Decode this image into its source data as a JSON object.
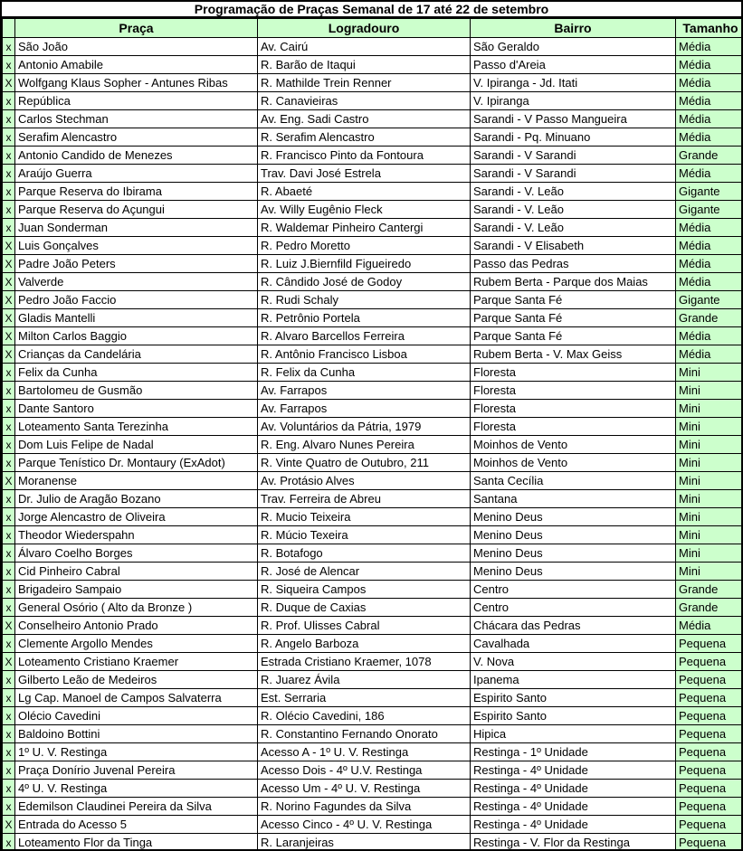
{
  "title": "Programação de Praças Semanal de 17 até 22 de setembro",
  "colors": {
    "highlight_green": "#ccffcc",
    "border": "#000000",
    "text": "#000000",
    "row_bg": "#ffffff"
  },
  "table": {
    "columns": {
      "mark": "",
      "praca": "Praça",
      "logradouro": "Logradouro",
      "bairro": "Bairro",
      "tamanho": "Tamanho"
    },
    "rows": [
      {
        "mark": "x",
        "praca": "São João",
        "logradouro": "Av. Cairú",
        "bairro": "São Geraldo",
        "tamanho": "Média"
      },
      {
        "mark": "x",
        "praca": "Antonio Amabile",
        "logradouro": "R. Barão de Itaqui",
        "bairro": "Passo d'Areia",
        "tamanho": "Média"
      },
      {
        "mark": "X",
        "praca": "Wolfgang Klaus Sopher - Antunes Ribas",
        "logradouro": "R. Mathilde Trein Renner",
        "bairro": "V. Ipiranga - Jd. Itati",
        "tamanho": "Média"
      },
      {
        "mark": "x",
        "praca": "República",
        "logradouro": "R. Canavieiras",
        "bairro": "V. Ipiranga",
        "tamanho": "Média"
      },
      {
        "mark": "x",
        "praca": "Carlos Stechman",
        "logradouro": "Av. Eng. Sadi Castro",
        "bairro": "Sarandi - V Passo Mangueira",
        "tamanho": "Média"
      },
      {
        "mark": "x",
        "praca": "Serafim Alencastro",
        "logradouro": "R. Serafim Alencastro",
        "bairro": "Sarandi - Pq. Minuano",
        "tamanho": "Média"
      },
      {
        "mark": "x",
        "praca": "Antonio Candido de Menezes",
        "logradouro": "R. Francisco Pinto da Fontoura",
        "bairro": "Sarandi - V Sarandi",
        "tamanho": "Grande"
      },
      {
        "mark": "x",
        "praca": "Araújo Guerra",
        "logradouro": "Trav. Davi José Estrela",
        "bairro": "Sarandi - V Sarandi",
        "tamanho": "Média"
      },
      {
        "mark": "x",
        "praca": "Parque Reserva do Ibirama",
        "logradouro": "R. Abaeté",
        "bairro": "Sarandi - V. Leão",
        "tamanho": "Gigante"
      },
      {
        "mark": "x",
        "praca": "Parque Reserva do Açungui",
        "logradouro": "Av. Willy Eugênio Fleck",
        "bairro": "Sarandi - V. Leão",
        "tamanho": "Gigante"
      },
      {
        "mark": "x",
        "praca": "Juan Sonderman",
        "logradouro": "R. Waldemar Pinheiro Cantergi",
        "bairro": "Sarandi - V. Leão",
        "tamanho": "Média"
      },
      {
        "mark": "X",
        "praca": "Luis Gonçalves",
        "logradouro": "R. Pedro Moretto",
        "bairro": "Sarandi - V Elisabeth",
        "tamanho": "Média"
      },
      {
        "mark": "X",
        "praca": "Padre João Peters",
        "logradouro": "R. Luiz J.Biernfild Figueiredo",
        "bairro": "Passo das Pedras",
        "tamanho": "Média"
      },
      {
        "mark": "X",
        "praca": "Valverde",
        "logradouro": "R. Cândido José de Godoy",
        "bairro": "Rubem Berta - Parque dos Maias",
        "tamanho": "Média"
      },
      {
        "mark": "X",
        "praca": "Pedro João Faccio",
        "logradouro": "R. Rudi Schaly",
        "bairro": "Parque Santa Fé",
        "tamanho": "Gigante"
      },
      {
        "mark": "X",
        "praca": "Gladis Mantelli",
        "logradouro": "R. Petrônio Portela",
        "bairro": "Parque Santa Fé",
        "tamanho": "Grande"
      },
      {
        "mark": "X",
        "praca": "Milton Carlos Baggio",
        "logradouro": "R. Alvaro Barcellos Ferreira",
        "bairro": "Parque Santa Fé",
        "tamanho": "Média"
      },
      {
        "mark": "X",
        "praca": "Crianças da Candelária",
        "logradouro": "R. Antônio Francisco Lisboa",
        "bairro": "Rubem Berta - V. Max Geiss",
        "tamanho": "Média"
      },
      {
        "mark": "x",
        "praca": "Felix da Cunha",
        "logradouro": "R. Felix da Cunha",
        "bairro": "Floresta",
        "tamanho": "Mini"
      },
      {
        "mark": "x",
        "praca": "Bartolomeu de Gusmão",
        "logradouro": "Av. Farrapos",
        "bairro": "Floresta",
        "tamanho": "Mini"
      },
      {
        "mark": "x",
        "praca": "Dante Santoro",
        "logradouro": "Av. Farrapos",
        "bairro": "Floresta",
        "tamanho": "Mini"
      },
      {
        "mark": "x",
        "praca": "Loteamento Santa Terezinha",
        "logradouro": "Av. Voluntários da Pátria, 1979",
        "bairro": "Floresta",
        "tamanho": "Mini"
      },
      {
        "mark": "x",
        "praca": "Dom Luis Felipe de Nadal",
        "logradouro": "R. Eng. Alvaro Nunes Pereira",
        "bairro": "Moinhos de Vento",
        "tamanho": "Mini"
      },
      {
        "mark": "x",
        "praca": "Parque Tenístico Dr. Montaury (ExAdot)",
        "logradouro": "R. Vinte Quatro de Outubro, 211",
        "bairro": "Moinhos de Vento",
        "tamanho": "Mini"
      },
      {
        "mark": "X",
        "praca": "Moranense",
        "logradouro": "Av. Protásio Alves",
        "bairro": "Santa Cecília",
        "tamanho": "Mini"
      },
      {
        "mark": "x",
        "praca": "Dr. Julio de Aragão Bozano",
        "logradouro": "Trav. Ferreira de Abreu",
        "bairro": "Santana",
        "tamanho": "Mini"
      },
      {
        "mark": "x",
        "praca": "Jorge Alencastro de Oliveira",
        "logradouro": "R. Mucio Teixeira",
        "bairro": "Menino Deus",
        "tamanho": "Mini"
      },
      {
        "mark": "x",
        "praca": "Theodor Wiederspahn",
        "logradouro": "R. Múcio Texeira",
        "bairro": "Menino Deus",
        "tamanho": "Mini"
      },
      {
        "mark": "x",
        "praca": "Álvaro Coelho Borges",
        "logradouro": "R. Botafogo",
        "bairro": "Menino Deus",
        "tamanho": "Mini"
      },
      {
        "mark": "x",
        "praca": "Cid Pinheiro Cabral",
        "logradouro": "R. José de Alencar",
        "bairro": "Menino Deus",
        "tamanho": "Mini"
      },
      {
        "mark": "x",
        "praca": "Brigadeiro Sampaio",
        "logradouro": "R. Siqueira Campos",
        "bairro": "Centro",
        "tamanho": "Grande"
      },
      {
        "mark": "x",
        "praca": "General Osório ( Alto da Bronze )",
        "logradouro": "R. Duque de Caxias",
        "bairro": "Centro",
        "tamanho": "Grande"
      },
      {
        "mark": "X",
        "praca": "Conselheiro Antonio Prado",
        "logradouro": "R. Prof. Ulisses Cabral",
        "bairro": "Chácara das Pedras",
        "tamanho": "Média"
      },
      {
        "mark": "x",
        "praca": "Clemente Argollo Mendes",
        "logradouro": "R. Angelo Barboza",
        "bairro": "Cavalhada",
        "tamanho": "Pequena"
      },
      {
        "mark": "X",
        "praca": "Loteamento Cristiano Kraemer",
        "logradouro": "Estrada Cristiano Kraemer, 1078",
        "bairro": "V. Nova",
        "tamanho": "Pequena"
      },
      {
        "mark": "x",
        "praca": "Gilberto Leão de Medeiros",
        "logradouro": "R. Juarez Ávila",
        "bairro": "Ipanema",
        "tamanho": "Pequena"
      },
      {
        "mark": "x",
        "praca": "Lg Cap. Manoel de Campos Salvaterra",
        "logradouro": "Est. Serraria",
        "bairro": "Espirito Santo",
        "tamanho": "Pequena"
      },
      {
        "mark": "x",
        "praca": "Olécio Cavedini",
        "logradouro": "R. Olécio Cavedini, 186",
        "bairro": "Espirito Santo",
        "tamanho": "Pequena"
      },
      {
        "mark": "x",
        "praca": "Baldoino Bottini",
        "logradouro": "R. Constantino Fernando Onorato",
        "bairro": "Hipica",
        "tamanho": "Pequena"
      },
      {
        "mark": "x",
        "praca": "1º U. V. Restinga",
        "logradouro": "Acesso A - 1º U. V. Restinga",
        "bairro": "Restinga - 1º Unidade",
        "tamanho": "Pequena"
      },
      {
        "mark": "x",
        "praca": "Praça Donírio Juvenal Pereira",
        "logradouro": "Acesso Dois - 4º U.V. Restinga",
        "bairro": "Restinga - 4º Unidade",
        "tamanho": "Pequena"
      },
      {
        "mark": "x",
        "praca": "4º U. V. Restinga",
        "logradouro": "Acesso Um - 4º U. V. Restinga",
        "bairro": "Restinga - 4º Unidade",
        "tamanho": "Pequena"
      },
      {
        "mark": "x",
        "praca": "Edemilson Claudinei Pereira da Silva",
        "logradouro": "R. Norino Fagundes da Silva",
        "bairro": "Restinga - 4º Unidade",
        "tamanho": "Pequena"
      },
      {
        "mark": "X",
        "praca": "Entrada do Acesso 5",
        "logradouro": "Acesso Cinco - 4º U. V. Restinga",
        "bairro": "Restinga - 4º Unidade",
        "tamanho": "Pequena"
      },
      {
        "mark": "x",
        "praca": "Loteamento Flor da Tinga",
        "logradouro": "R. Laranjeiras",
        "bairro": "Restinga - V. Flor da Restinga",
        "tamanho": "Pequena"
      }
    ]
  }
}
